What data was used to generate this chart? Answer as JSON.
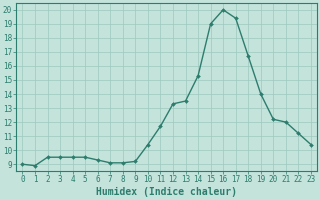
{
  "x": [
    0,
    1,
    2,
    3,
    4,
    5,
    6,
    7,
    8,
    9,
    10,
    11,
    12,
    13,
    14,
    15,
    16,
    17,
    18,
    19,
    20,
    21,
    22,
    23
  ],
  "y": [
    9.0,
    8.9,
    9.5,
    9.5,
    9.5,
    9.5,
    9.3,
    9.1,
    9.1,
    9.2,
    10.4,
    11.7,
    13.3,
    13.5,
    15.3,
    19.0,
    20.0,
    19.4,
    16.7,
    14.0,
    12.2,
    12.0,
    11.2,
    10.4
  ],
  "line_color": "#2d7d6e",
  "marker": "D",
  "marker_size": 2.0,
  "bg_color": "#c3e3db",
  "grid_color": "#9ec8be",
  "xlabel": "Humidex (Indice chaleur)",
  "xlim": [
    -0.5,
    23.5
  ],
  "ylim": [
    8.5,
    20.5
  ],
  "yticks": [
    9,
    10,
    11,
    12,
    13,
    14,
    15,
    16,
    17,
    18,
    19,
    20
  ],
  "xticks": [
    0,
    1,
    2,
    3,
    4,
    5,
    6,
    7,
    8,
    9,
    10,
    11,
    12,
    13,
    14,
    15,
    16,
    17,
    18,
    19,
    20,
    21,
    22,
    23
  ],
  "tick_label_fontsize": 5.5,
  "xlabel_fontsize": 7.0,
  "tick_color": "#2d7d6e",
  "axis_color": "#2d7d6e",
  "linewidth": 1.0
}
